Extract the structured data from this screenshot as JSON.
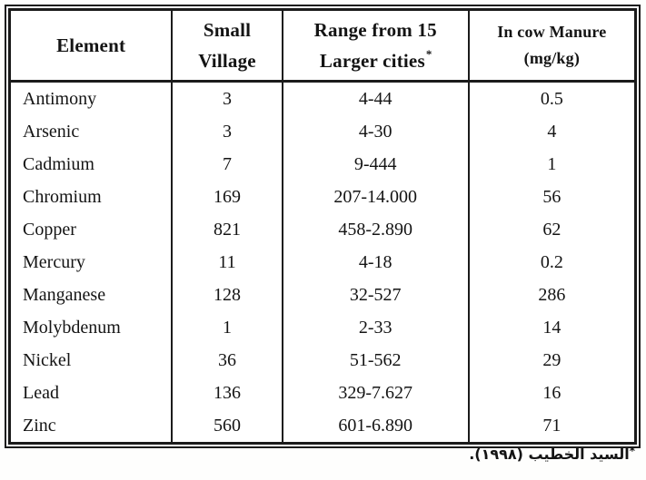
{
  "table": {
    "headers": [
      {
        "line1": "Element"
      },
      {
        "line1": "Small",
        "line2": "Village"
      },
      {
        "line1": "Range from 15",
        "line2": "Larger cities",
        "sup": "*"
      },
      {
        "line1": "In cow Manure",
        "line2": "(mg/kg)"
      }
    ],
    "rows": [
      {
        "element": "Antimony",
        "small_village": "3",
        "range": "4-44",
        "manure": "0.5"
      },
      {
        "element": "Arsenic",
        "small_village": "3",
        "range": "4-30",
        "manure": "4"
      },
      {
        "element": "Cadmium",
        "small_village": "7",
        "range": "9-444",
        "manure": "1"
      },
      {
        "element": "Chromium",
        "small_village": "169",
        "range": "207-14.000",
        "manure": "56"
      },
      {
        "element": "Copper",
        "small_village": "821",
        "range": "458-2.890",
        "manure": "62"
      },
      {
        "element": "Mercury",
        "small_village": "11",
        "range": "4-18",
        "manure": "0.2"
      },
      {
        "element": "Manganese",
        "small_village": "128",
        "range": "32-527",
        "manure": "286"
      },
      {
        "element": "Molybdenum",
        "small_village": "1",
        "range": "2-33",
        "manure": "14"
      },
      {
        "element": "Nickel",
        "small_village": "36",
        "range": "51-562",
        "manure": "29"
      },
      {
        "element": "Lead",
        "small_village": "136",
        "range": "329-7.627",
        "manure": "16"
      },
      {
        "element": "Zinc",
        "small_village": "560",
        "range": "601-6.890",
        "manure": "71"
      }
    ]
  },
  "footnote": {
    "marker": "*",
    "text": "السيد الخطيب (١٩٩٨)."
  },
  "colors": {
    "border": "#1b1b1b",
    "text": "#141414",
    "background": "#ffffff"
  }
}
